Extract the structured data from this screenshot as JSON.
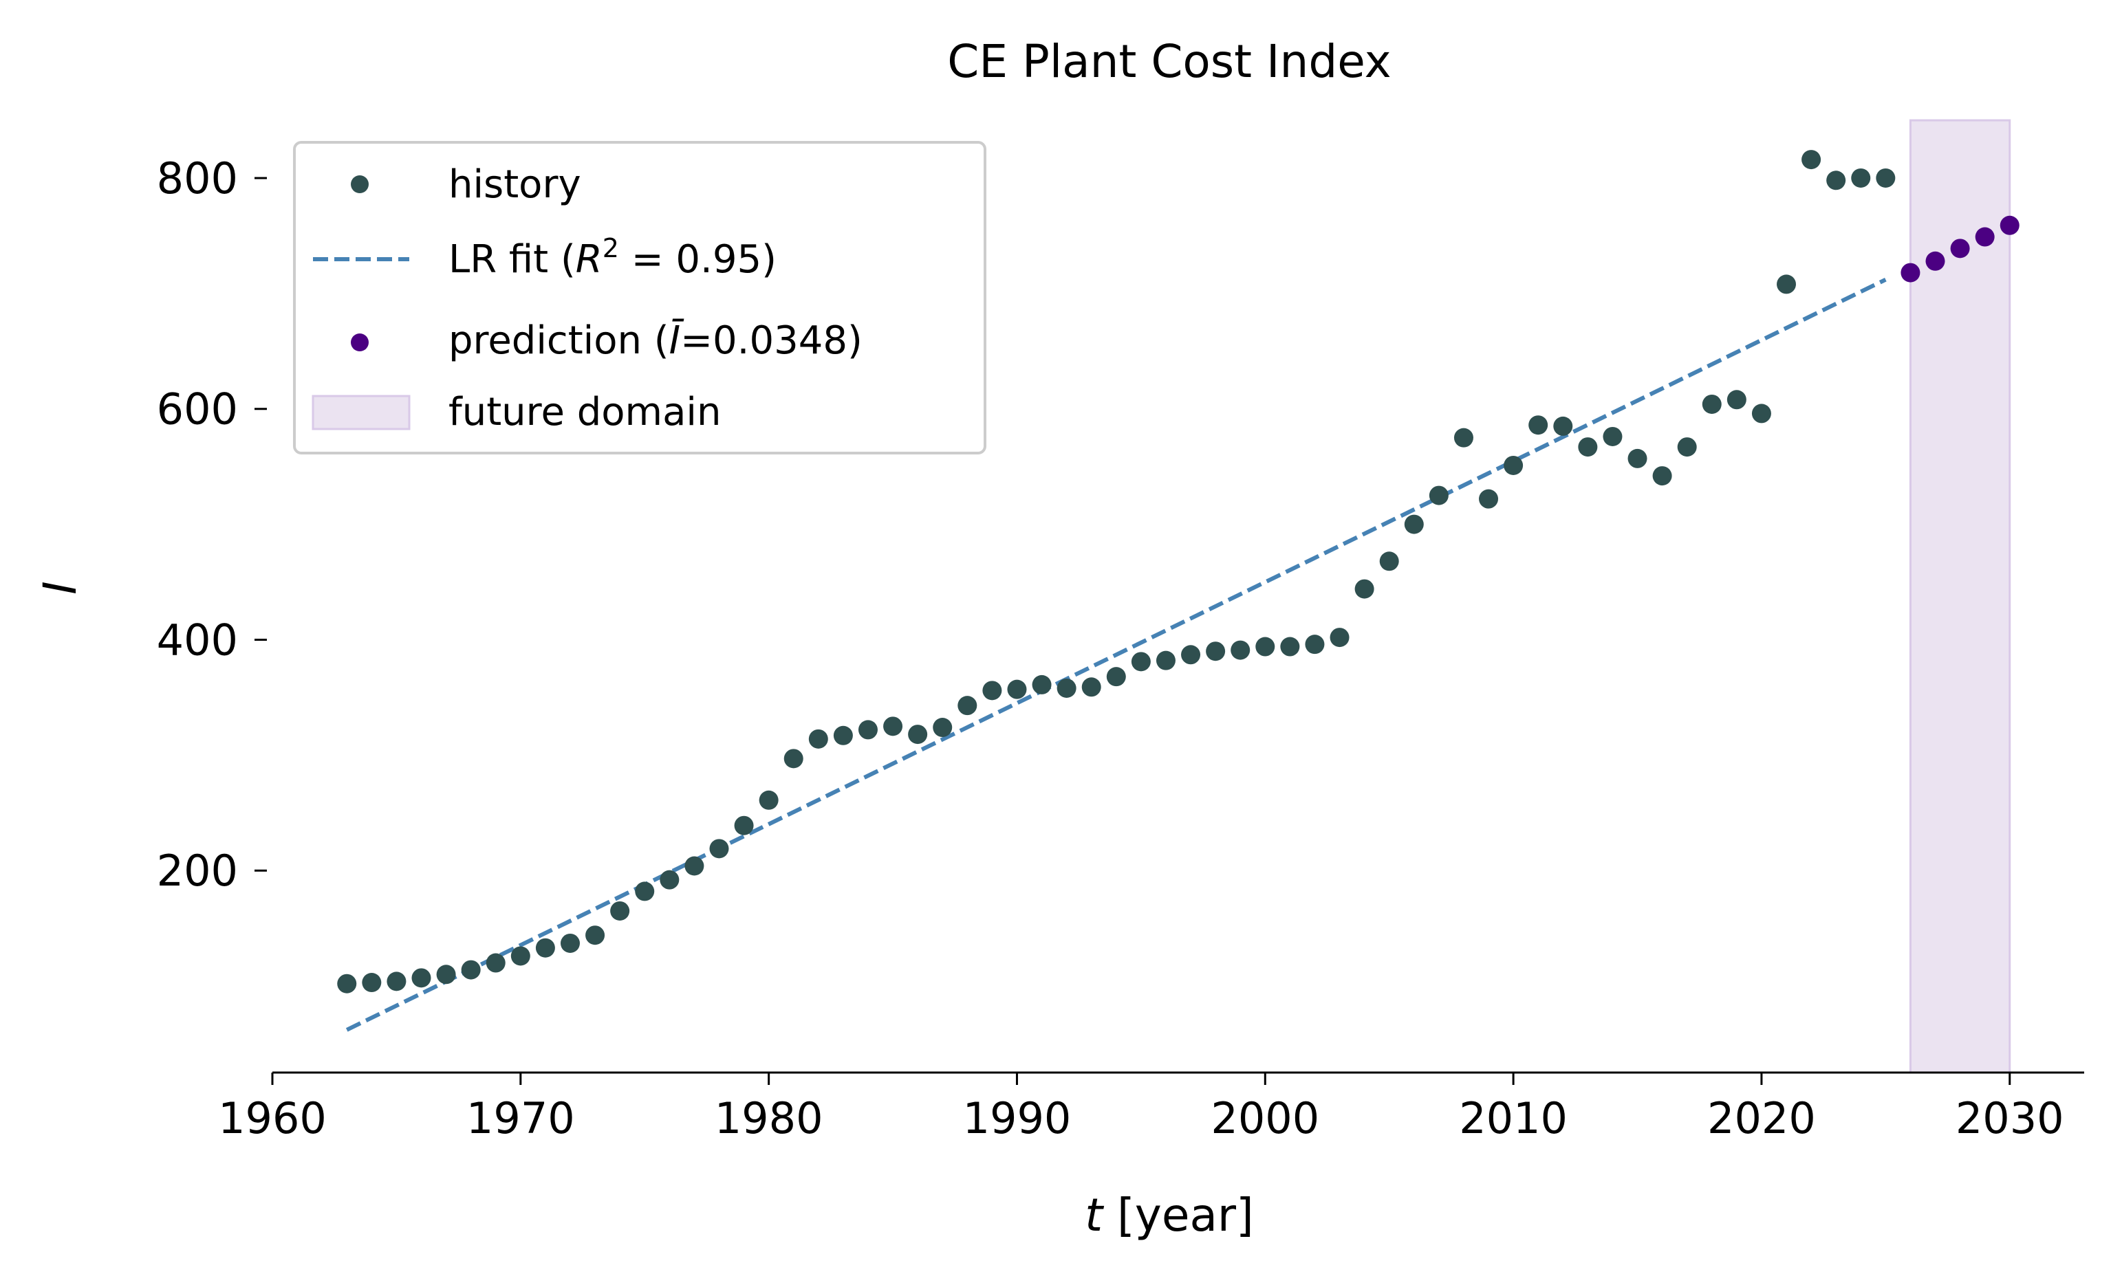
{
  "chart_data": {
    "type": "scatter",
    "title": "CE Plant Cost Index",
    "xlabel_var": "t",
    "xlabel_unit": " [year]",
    "ylabel": "I",
    "xlim": [
      1960,
      2033
    ],
    "ylim": [
      25,
      850
    ],
    "xticks": [
      1960,
      1970,
      1980,
      1990,
      2000,
      2010,
      2020,
      2030
    ],
    "yticks": [
      200,
      400,
      600,
      800
    ],
    "colors": {
      "history": "#2f4f4f",
      "fit": "#4682b4",
      "prediction": "#4b0082",
      "future_domain_fill": "#ebe3f1",
      "future_domain_edge": "#d9c9e8"
    },
    "series": [
      {
        "name": "history",
        "kind": "scatter",
        "x": [
          1963,
          1964,
          1965,
          1966,
          1967,
          1968,
          1969,
          1970,
          1971,
          1972,
          1973,
          1974,
          1975,
          1976,
          1977,
          1978,
          1979,
          1980,
          1981,
          1982,
          1983,
          1984,
          1985,
          1986,
          1987,
          1988,
          1989,
          1990,
          1991,
          1992,
          1993,
          1994,
          1995,
          1996,
          1997,
          1998,
          1999,
          2000,
          2001,
          2002,
          2003,
          2004,
          2005,
          2006,
          2007,
          2008,
          2009,
          2010,
          2011,
          2012,
          2013,
          2014,
          2015,
          2016,
          2017,
          2018,
          2019,
          2020,
          2021,
          2022,
          2023,
          2024,
          2025
        ],
        "y": [
          102,
          103,
          104,
          107,
          110,
          114,
          120,
          126,
          133,
          137,
          144,
          165,
          182,
          192,
          204,
          219,
          239,
          261,
          297,
          314,
          317,
          322,
          325,
          318,
          324,
          343,
          356,
          357,
          361,
          358,
          359,
          368,
          381,
          382,
          387,
          390,
          391,
          394,
          394,
          396,
          402,
          444,
          468,
          500,
          525,
          575,
          522,
          551,
          586,
          585,
          567,
          576,
          557,
          542,
          567,
          604,
          608,
          596,
          708,
          816,
          798,
          800,
          800
        ]
      },
      {
        "name": "LR fit",
        "kind": "line",
        "legend_prefix": "LR fit (",
        "legend_var": "R",
        "legend_sup": "2",
        "legend_suffix": " = 0.95)",
        "x": [
          1963,
          2025
        ],
        "y": [
          62,
          712
        ]
      },
      {
        "name": "prediction",
        "kind": "scatter",
        "legend_prefix": "prediction (",
        "legend_var": "Ī",
        "legend_suffix": "=0.0348)",
        "x": [
          2026,
          2027,
          2028,
          2029,
          2030
        ],
        "y": [
          718,
          728,
          739,
          749,
          759
        ]
      },
      {
        "name": "future domain",
        "kind": "span",
        "x_range": [
          2026,
          2030
        ]
      }
    ],
    "legend": {
      "location": "upper-left",
      "entries": [
        "history",
        "LR fit (R² = 0.95)",
        "prediction (Ī=0.0348)",
        "future domain"
      ],
      "history_label": "history",
      "future_label": "future domain"
    }
  }
}
